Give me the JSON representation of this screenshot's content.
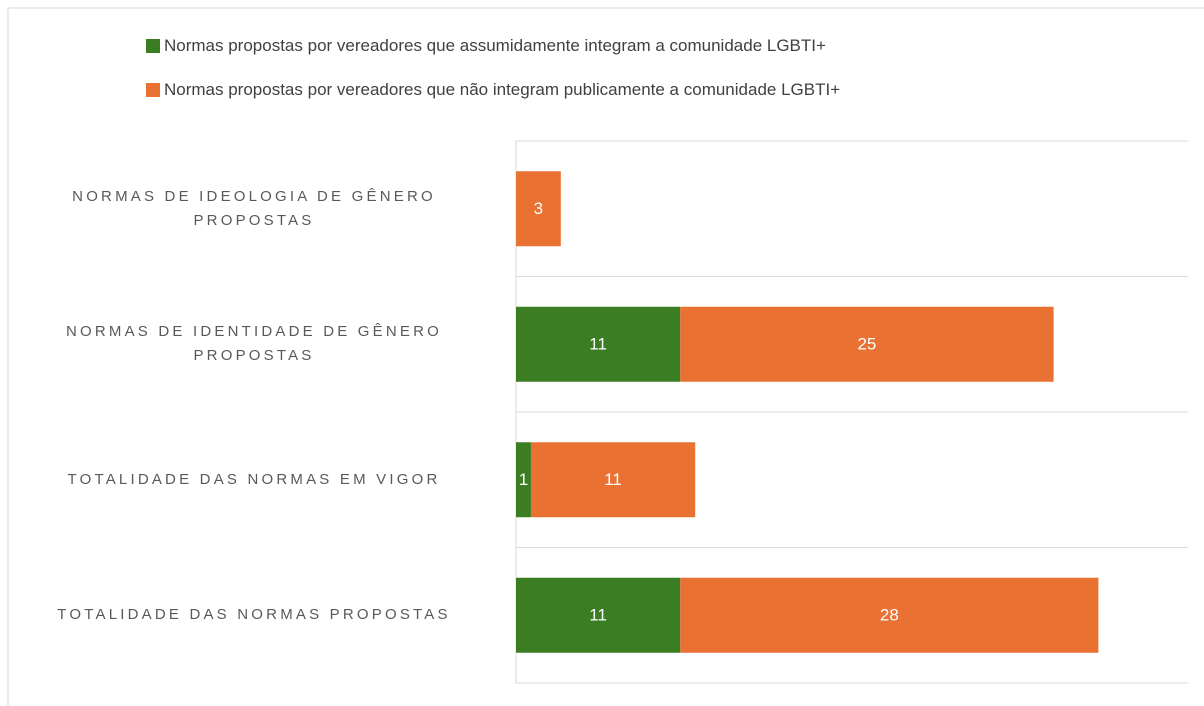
{
  "chart_data": {
    "type": "stacked-barh",
    "categories": [
      "NORMAS DE IDEOLOGIA DE GÊNERO PROPOSTAS",
      "NORMAS DE IDENTIDADE DE GÊNERO PROPOSTAS",
      "TOTALIDADE DAS NORMAS EM VIGOR",
      "TOTALIDADE DAS NORMAS PROPOSTAS"
    ],
    "series": [
      {
        "name": "Normas propostas por vereadores que assumidamente integram a comunidade LGBTI+",
        "color": "#3a7d22",
        "values": [
          null,
          11,
          1,
          11
        ]
      },
      {
        "name": "Normas propostas por vereadores que não integram publicamente a comunidade LGBTI+",
        "color": "#e97132",
        "values": [
          3,
          25,
          11,
          28
        ]
      }
    ],
    "xlim": [
      0,
      45
    ],
    "grid": true,
    "legend": "top"
  }
}
